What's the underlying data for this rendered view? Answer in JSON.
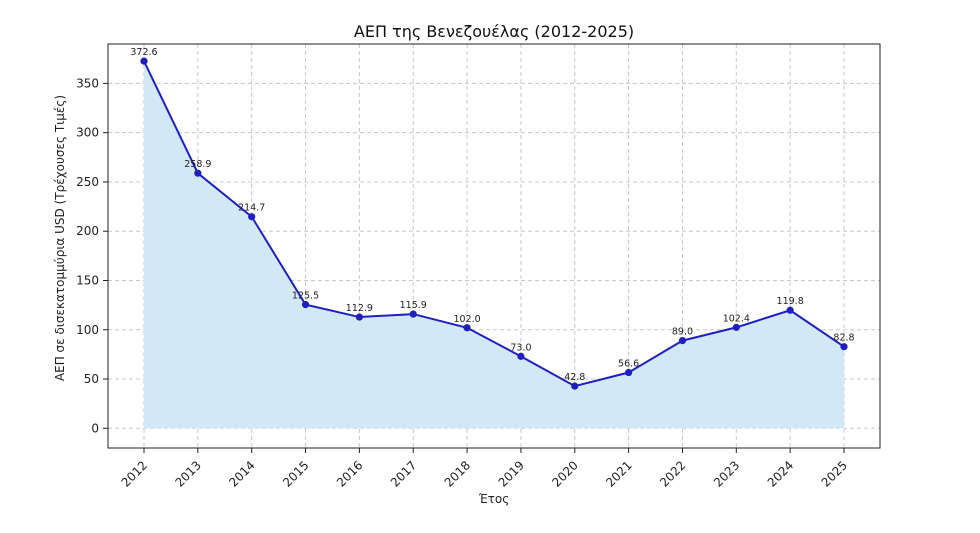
{
  "chart_data": {
    "type": "line",
    "title": "ΑΕΠ της Βενεζουέλας (2012-2025)",
    "xlabel": "Έτος",
    "ylabel": "ΑΕΠ σε δισεκατομμύρια USD (Τρέχουσες Τιμές)",
    "categories": [
      "2012",
      "2013",
      "2014",
      "2015",
      "2016",
      "2017",
      "2018",
      "2019",
      "2020",
      "2021",
      "2022",
      "2023",
      "2024",
      "2025"
    ],
    "values": [
      372.6,
      258.9,
      214.7,
      125.5,
      112.9,
      115.9,
      102.0,
      73.0,
      42.8,
      56.6,
      89.0,
      102.4,
      119.8,
      82.8
    ],
    "data_labels": [
      "372.6",
      "258.9",
      "214.7",
      "125.5",
      "112.9",
      "115.9",
      "102.0",
      "73.0",
      "42.8",
      "56.6",
      "89.0",
      "102.4",
      "119.8",
      "82.8"
    ],
    "ylim": [
      -20,
      390
    ],
    "yticks": [
      0,
      50,
      100,
      150,
      200,
      250,
      300,
      350
    ],
    "grid": true,
    "line_color": "#1f1fbf",
    "fill_color": "#d3e8f5"
  }
}
